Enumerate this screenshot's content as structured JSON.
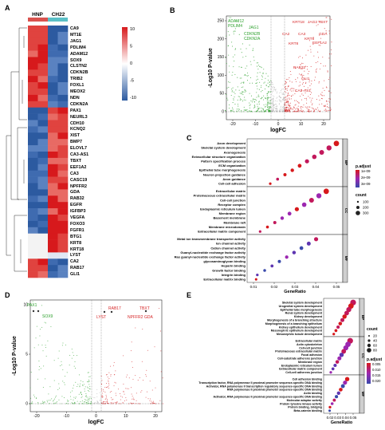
{
  "panels": {
    "A": "A",
    "B": "B",
    "C": "C",
    "D": "D",
    "E": "E"
  },
  "heatmap": {
    "groups": [
      "HNP",
      "CH22"
    ],
    "group_colors": [
      "#d9534f",
      "#5bc0c7"
    ],
    "genes": [
      "CA9",
      "MT1E",
      "JAG1",
      "PDLIM4",
      "ADAM12",
      "SOX9",
      "CLSTN2",
      "CDKN2B",
      "TRIB2",
      "FOXL1",
      "MEOX2",
      "NDN",
      "CDKN2A",
      "PAX1",
      "NEURL3",
      "CDH10",
      "KCNQ2",
      "XIST",
      "BMP7",
      "ELOVL7",
      "CA3-AS1",
      "TBXT",
      "EEF1A2",
      "CA3",
      "CASC19",
      "NPFFR2",
      "GDA",
      "RAB32",
      "EGFR",
      "IGFBP3",
      "VEGFA",
      "FOXO3",
      "FGFR1",
      "BTG1",
      "KRT8",
      "KRT18",
      "LYST",
      "CA2",
      "RAB17",
      "GLI1"
    ],
    "colorbar_ticks": [
      "10",
      "5",
      "0",
      "-5",
      "-10"
    ]
  },
  "volcanoB": {
    "xlabel": "logFC",
    "ylabel": "-Log10 P-value",
    "xticks": [
      "-20",
      "-10",
      "0",
      "10",
      "20"
    ],
    "yticks": [
      "0",
      "50",
      "100",
      "150",
      "200",
      "250"
    ],
    "down_labels": [
      "ADAM12",
      "PDLIM4",
      "JAG1",
      "CDKN2B",
      "CDKN2A"
    ],
    "up_labels": [
      "KRT18",
      "JAG2",
      "TBXT",
      "GDA",
      "CA2",
      "CA3",
      "KRT8",
      "EEF1A2",
      "KRT8",
      "RAB32",
      "GLI1",
      "CA3-AS1"
    ]
  },
  "dotC": {
    "xlabel": "GeneRatio",
    "xticks": [
      "0.01",
      "0.02",
      "0.03",
      "0.04",
      "0.05"
    ],
    "bp_label": "BP",
    "cc_label": "CC",
    "mf_label": "MF",
    "bp_terms": [
      "Axon development",
      "Skeletal system development",
      "Axonogenesis",
      "Extracellular structure organization",
      "Pattern specification process",
      "ECM organization",
      "Epithelial tube morphogenesis",
      "Neuron projection guidance",
      "Axon guidance",
      "Cell-cell adhesion"
    ],
    "cc_terms": [
      "Extracellular matrix",
      "Proteinaceous extracellular matrix",
      "Cell-cell junction",
      "Receptor complex",
      "Endoplasmic reticulum lumen",
      "Membrane region",
      "Basement membrane",
      "Membrane raft",
      "Membrane microdomain",
      "Extracellular matrix component"
    ],
    "mf_terms": [
      "Metal ion transmembrane transporter activity",
      "Ion channel activity",
      "Cation channel activity",
      "Guanyl-nucleotide exchange factor activity",
      "Ras guanyl-nucleotide exchange factor activity",
      "glycosaminoglycan binding",
      "Heparin binding",
      "Growth factor binding",
      "Integrin binding",
      "Extracellular matrix binding"
    ],
    "legend_padj_title": "p.adjust",
    "legend_padj_values": [
      "1e-09",
      "2e-09",
      "3e-09"
    ],
    "legend_count_title": "count",
    "legend_count_values": [
      "100",
      "200",
      "300"
    ]
  },
  "volcanoD": {
    "xlabel": "logFC",
    "ylabel": "-Log10 P-value",
    "xticks": [
      "-20",
      "-10",
      "0",
      "10",
      "20"
    ],
    "yticks": [
      "0",
      "5",
      "10"
    ],
    "labels": [
      "PAX1",
      "SOX9",
      "LYST",
      "RAB17",
      "TBXT",
      "NPFFR2",
      "GDA"
    ]
  },
  "dotE": {
    "xlabel": "GeneRatio",
    "xticks": [
      "0.02",
      "0.03",
      "0.04",
      "0.05"
    ],
    "bp_label": "BP",
    "cc_label": "CC",
    "mf_label": "MF",
    "bp_terms": [
      "Skeletal system development",
      "Urogenital system development",
      "Epithelial tube morphogenesis",
      "Renal system development",
      "Kidney development",
      "Morphogenesis of a branching structure",
      "Morphogenesis of a branching epithelium",
      "Kidney epithelium development",
      "Mesonephric epithelium development",
      "Mesonephric tubule development"
    ],
    "cc_terms": [
      "Extracellular matrix",
      "Actin cytoskeleton",
      "Cell-cell junction",
      "Proteinaceous extracellular matrix",
      "Focal adhesion",
      "Cell-substrate adherens junction",
      "Membrane region",
      "Endoplasmic reticulum lumen",
      "Extracellular matrix component",
      "Cell-cell adherens junction"
    ],
    "mf_terms": [
      "Cell adhesion binding",
      "Transcription factor, RNA polymerase II proximal promoter sequence-specific DNA binding",
      "Activator, RNA polymerase II transcription regulatory sequence-specific DNA binding",
      "RNA polymerase II proximal promoter sequence-specific DNA binding",
      "Actin binding",
      "Activator, RNA polymerase II proximal promoter sequence-specific DNA binding",
      "Molecular adaptor activity",
      "Protein tyrosine kinase activity",
      "Protein binding, bridging",
      "Beta-catenin binding"
    ],
    "legend_count_title": "count",
    "legend_count_values": [
      "20",
      "40",
      "60",
      "80"
    ],
    "legend_padj_title": "p.adjust",
    "legend_padj_values": [
      "0.005",
      "0.010",
      "0.015",
      "0.020"
    ]
  }
}
